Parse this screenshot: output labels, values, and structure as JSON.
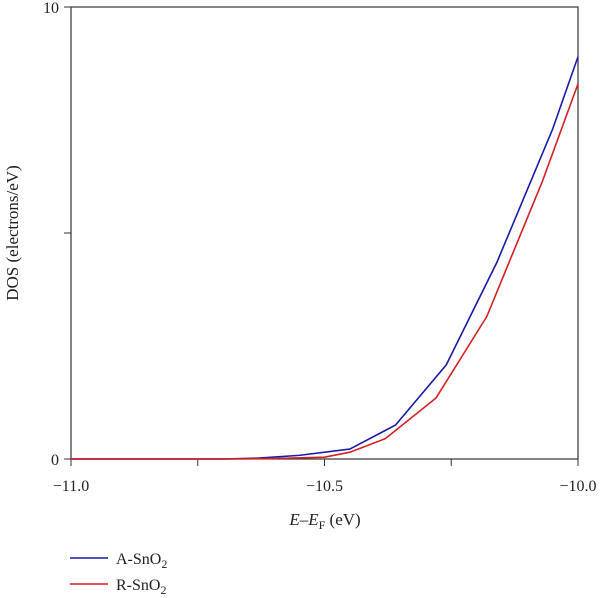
{
  "chart_data": {
    "type": "line",
    "xlabel": "E–E_F (eV)",
    "ylabel": "DOS (electrons/eV)",
    "xlim": [
      -11.0,
      -10.0
    ],
    "ylim": [
      0,
      10
    ],
    "x_ticks": [
      -11.0,
      -10.75,
      -10.5,
      -10.25,
      -10.0
    ],
    "x_tick_labels": [
      "−11.0",
      "",
      "−10.5",
      "",
      "−10.0"
    ],
    "y_ticks": [
      0,
      5,
      10
    ],
    "y_tick_labels": [
      "0",
      "",
      "10"
    ],
    "legend_position": "bottom-left, below plot",
    "grid": false,
    "series": [
      {
        "name": "A-SnO2",
        "color": "#1a1aaa",
        "x": [
          -11.0,
          -10.9,
          -10.8,
          -10.7,
          -10.63,
          -10.55,
          -10.45,
          -10.36,
          -10.26,
          -10.16,
          -10.05,
          -10.0
        ],
        "y": [
          0,
          0,
          0,
          0,
          0.02,
          0.08,
          0.22,
          0.75,
          2.08,
          4.35,
          7.3,
          8.9
        ]
      },
      {
        "name": "R-SnO2",
        "color": "#d42020",
        "x": [
          -11.0,
          -10.9,
          -10.8,
          -10.7,
          -10.6,
          -10.5,
          -10.45,
          -10.38,
          -10.28,
          -10.18,
          -10.07,
          -10.0
        ],
        "y": [
          0,
          0,
          0,
          0,
          0.01,
          0.04,
          0.15,
          0.45,
          1.35,
          3.15,
          6.15,
          8.3
        ]
      }
    ]
  }
}
